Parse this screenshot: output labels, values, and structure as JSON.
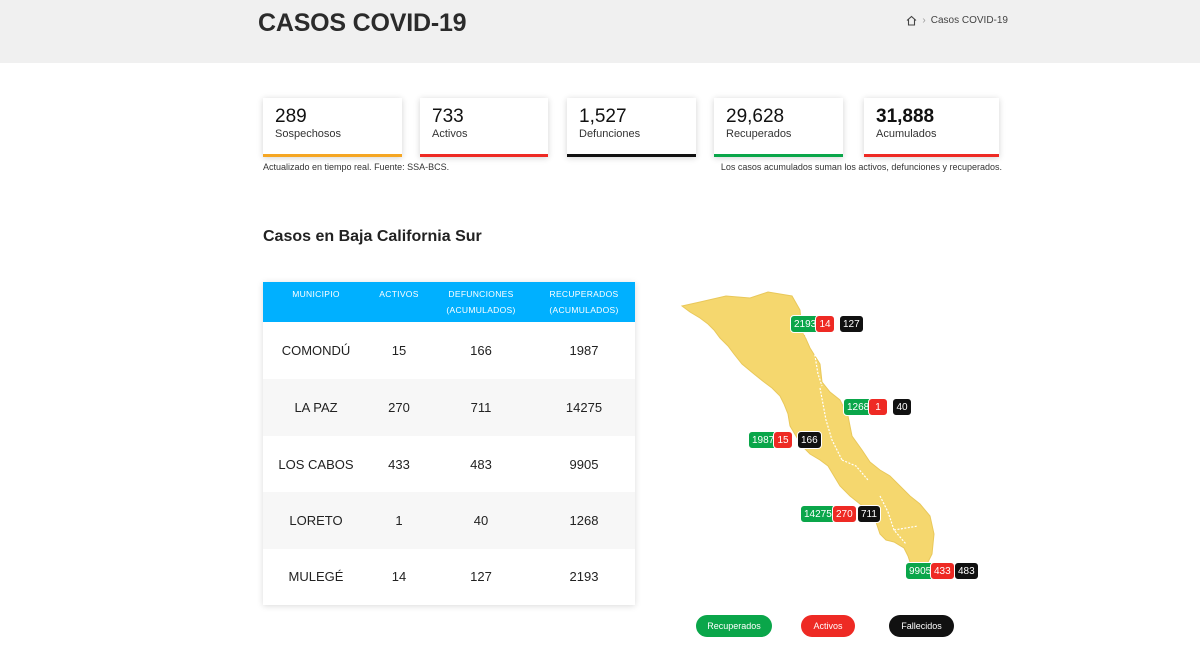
{
  "header": {
    "title": "CASOS COVID-19",
    "breadcrumb_current": "Casos COVID-19"
  },
  "stats": [
    {
      "value": "289",
      "label": "Sospechosos",
      "color": "#f5a623"
    },
    {
      "value": "733",
      "label": "Activos",
      "color": "#ee2a24"
    },
    {
      "value": "1,527",
      "label": "Defunciones",
      "color": "#111111"
    },
    {
      "value": "29,628",
      "label": "Recuperados",
      "color": "#0aa64a"
    },
    {
      "value": "31,888",
      "label": "Acumulados",
      "color": "#ee2a24"
    }
  ],
  "notes": {
    "left": "Actualizado en tiempo real. Fuente: SSA-BCS.",
    "right": "Los casos acumulados suman los activos, defunciones y recuperados."
  },
  "section": {
    "title": "Casos en Baja California Sur"
  },
  "table": {
    "headers": {
      "municipio": "MUNICIPIO",
      "activos": "ACTIVOS",
      "defunciones_1": "DEFUNCIONES",
      "defunciones_2": "(ACUMULADOS)",
      "recuperados_1": "RECUPERADOS",
      "recuperados_2": "(ACUMULADOS)"
    },
    "rows": [
      {
        "municipio": "COMONDÚ",
        "activos": "15",
        "defunciones": "166",
        "recuperados": "1987"
      },
      {
        "municipio": "LA PAZ",
        "activos": "270",
        "defunciones": "711",
        "recuperados": "14275"
      },
      {
        "municipio": "LOS CABOS",
        "activos": "433",
        "defunciones": "483",
        "recuperados": "9905"
      },
      {
        "municipio": "LORETO",
        "activos": "1",
        "defunciones": "40",
        "recuperados": "1268"
      },
      {
        "municipio": "MULEGÉ",
        "activos": "14",
        "defunciones": "127",
        "recuperados": "2193"
      }
    ]
  },
  "map": {
    "mulege": {
      "recuperados": "2193",
      "activos": "14",
      "fallecidos": "127"
    },
    "loreto": {
      "recuperados": "1268",
      "activos": "1",
      "fallecidos": "40"
    },
    "comondu": {
      "recuperados": "1987",
      "activos": "15",
      "fallecidos": "166"
    },
    "la_paz": {
      "recuperados": "14275",
      "activos": "270",
      "fallecidos": "711"
    },
    "los_cabos": {
      "recuperados": "9905",
      "activos": "433",
      "fallecidos": "483"
    }
  },
  "legend": {
    "recuperados": "Recuperados",
    "activos": "Activos",
    "fallecidos": "Fallecidos"
  },
  "colors": {
    "map_fill": "#f5d76e",
    "header_blue": "#00b0ff",
    "green": "#0aa64a",
    "red": "#ee2a24",
    "black": "#111111"
  }
}
